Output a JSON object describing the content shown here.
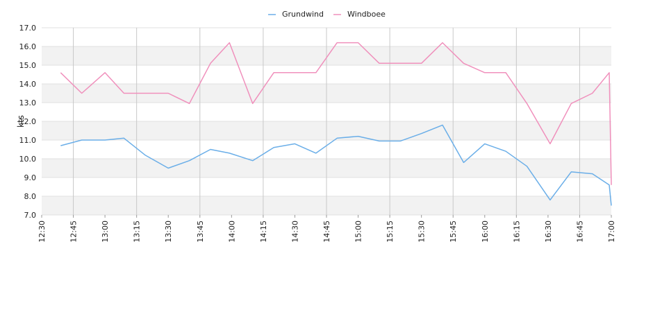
{
  "chart_data": {
    "type": "line",
    "title": "",
    "xlabel": "",
    "ylabel": "kts",
    "ylim": [
      7.0,
      17.0
    ],
    "xlim": [
      "12:30",
      "17:00"
    ],
    "yticks": [
      "7.0",
      "8.0",
      "9.0",
      "10.0",
      "11.0",
      "12.0",
      "13.0",
      "14.0",
      "15.0",
      "16.0",
      "17.0"
    ],
    "xticks": [
      "12:30",
      "12:45",
      "13:00",
      "13:15",
      "13:30",
      "13:45",
      "14:00",
      "14:15",
      "14:30",
      "14:45",
      "15:00",
      "15:15",
      "15:30",
      "15:45",
      "16:00",
      "16:15",
      "16:30",
      "16:45",
      "17:00"
    ],
    "grid": true,
    "legend_position": "top-center",
    "x": [
      "12:39",
      "12:49",
      "13:00",
      "13:09",
      "13:19",
      "13:30",
      "13:40",
      "13:50",
      "13:59",
      "14:10",
      "14:20",
      "14:30",
      "14:40",
      "14:50",
      "15:00",
      "15:10",
      "15:20",
      "15:30",
      "15:40",
      "15:50",
      "16:00",
      "16:10",
      "16:20",
      "16:31",
      "16:41",
      "16:51",
      "16:59",
      "17:00"
    ],
    "series": [
      {
        "name": "Grundwind",
        "color": "#6aaee8",
        "values": [
          10.7,
          11.0,
          11.0,
          11.1,
          10.2,
          9.5,
          9.9,
          10.5,
          10.3,
          9.9,
          10.6,
          10.8,
          10.3,
          11.1,
          11.2,
          10.95,
          10.95,
          11.35,
          11.8,
          9.8,
          10.8,
          10.4,
          9.6,
          7.8,
          9.3,
          9.2,
          8.6,
          7.5
        ]
      },
      {
        "name": "Windboee",
        "color": "#f090bc",
        "values": [
          14.6,
          13.5,
          14.6,
          13.5,
          13.5,
          13.5,
          12.95,
          15.1,
          16.2,
          12.95,
          14.6,
          14.6,
          14.6,
          16.2,
          16.2,
          15.1,
          15.1,
          15.1,
          16.2,
          15.1,
          14.6,
          14.6,
          12.95,
          10.8,
          12.95,
          13.5,
          14.6,
          8.6
        ]
      }
    ]
  }
}
